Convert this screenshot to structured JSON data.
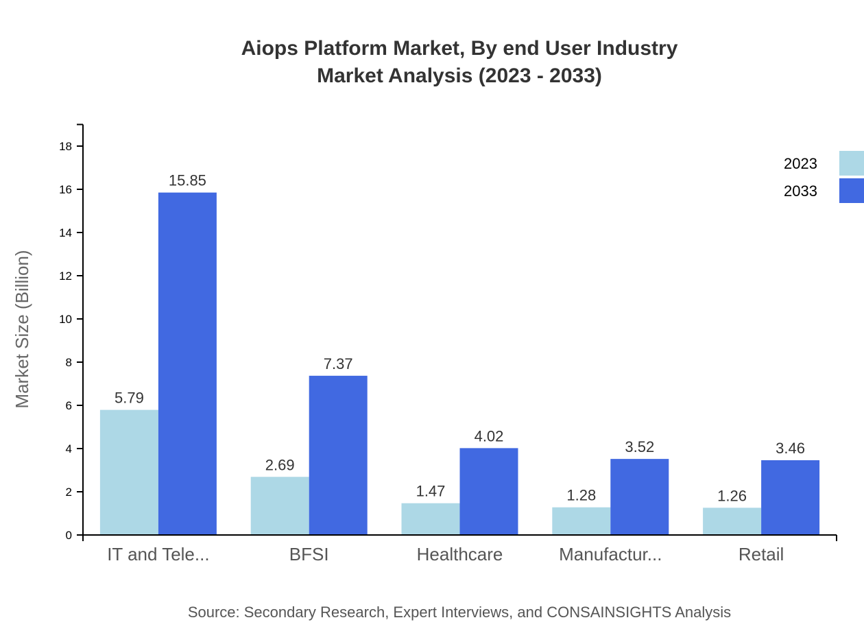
{
  "chart_data": {
    "type": "bar",
    "title": "Aiops Platform Market, By end User Industry",
    "subtitle": "Market Analysis (2023 - 2033)",
    "xlabel": "",
    "ylabel": "Market Size (Billion)",
    "ylim": [
      0,
      19
    ],
    "yticks": [
      0,
      2,
      4,
      6,
      8,
      10,
      12,
      14,
      16,
      18
    ],
    "categories": [
      "IT and Tele...",
      "BFSI",
      "Healthcare",
      "Manufactur...",
      "Retail"
    ],
    "series": [
      {
        "name": "2023",
        "color": "#add8e6",
        "values": [
          5.79,
          2.69,
          1.47,
          1.28,
          1.26
        ]
      },
      {
        "name": "2033",
        "color": "#4169e1",
        "values": [
          15.85,
          7.37,
          4.02,
          3.52,
          3.46
        ]
      }
    ],
    "grid": false,
    "legend": "top-right",
    "source": "Source: Secondary Research, Expert Interviews, and CONSAINSIGHTS Analysis"
  }
}
